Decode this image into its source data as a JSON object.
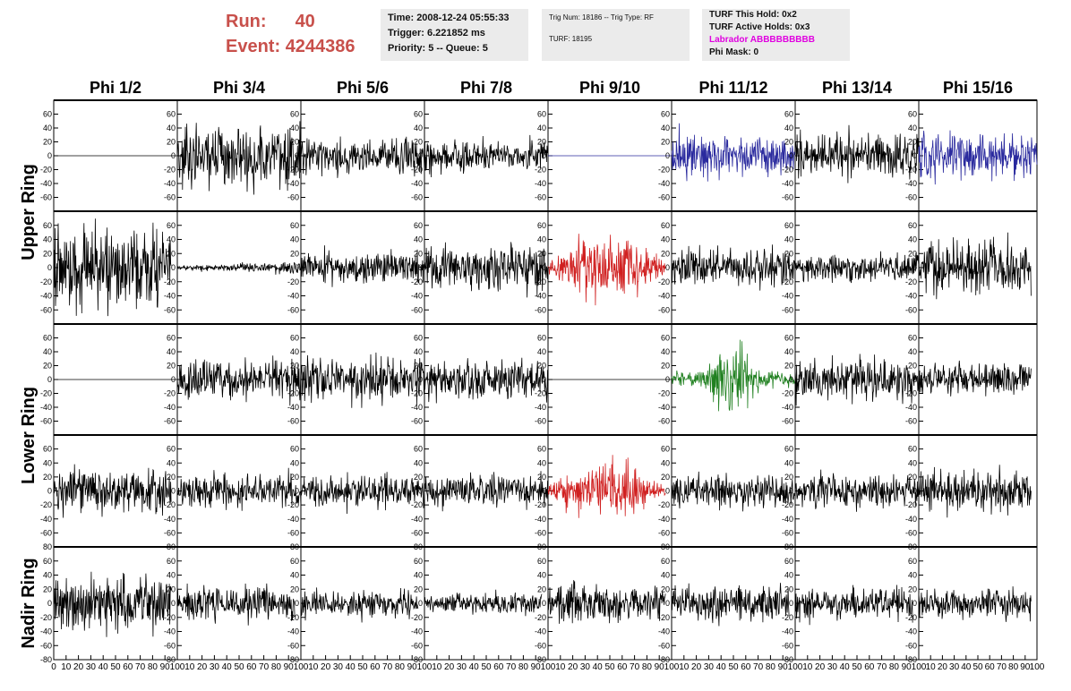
{
  "header": {
    "run_label": "Run:",
    "run_value": "40",
    "event_label": "Event:",
    "event_value": "4244386"
  },
  "info_box_1": {
    "time": "Time: 2008-12-24 05:55:33",
    "trigger": "Trigger: 6.221852 ms",
    "priority": "Priority: 5 -- Queue: 5"
  },
  "info_box_2": {
    "trig": "Trig Num: 18186 -- Trig Type: RF",
    "turf": "TURF: 18195"
  },
  "info_box_3": {
    "this_hold": "TURF This Hold: 0x2",
    "active_holds": "TURF Active Holds: 0x3",
    "labrador": "Labrador ABBBBBBBBB",
    "phi_mask": "Phi Mask: 0"
  },
  "colors": {
    "header_red": "#c8504b",
    "labrador_magenta": "#e000e0",
    "trace_black": "#000000",
    "trace_blue": "#2a2a9e",
    "trace_red": "#d02020",
    "trace_green": "#208020",
    "panel_background": "#ebebeb"
  },
  "chart_data": {
    "type": "line",
    "title": "",
    "column_labels": [
      "Phi 1/2",
      "Phi 3/4",
      "Phi 5/6",
      "Phi 7/8",
      "Phi 9/10",
      "Phi 11/12",
      "Phi 13/14",
      "Phi 15/16"
    ],
    "row_group_labels": [
      "Upper Ring",
      "Lower Ring",
      "Nadir Ring"
    ],
    "rows_per_group": [
      2,
      2,
      1
    ],
    "xlim": [
      0,
      100
    ],
    "ylim": [
      -80,
      80
    ],
    "x_tick_labels": [
      "0",
      "10",
      "20",
      "30",
      "40",
      "50",
      "60",
      "70",
      "80",
      "90",
      "100"
    ],
    "y_tick_labels": [
      "-80",
      "-60",
      "-40",
      "-20",
      "0",
      "20",
      "40",
      "60",
      "80"
    ],
    "trace_amplitude": [
      [
        0,
        22,
        12,
        11,
        0,
        15,
        16,
        16
      ],
      [
        28,
        3,
        11,
        16,
        18,
        13,
        9,
        18
      ],
      [
        0,
        14,
        15,
        14,
        0,
        16,
        15,
        11
      ],
      [
        15,
        12,
        11,
        11,
        14,
        11,
        11,
        14
      ],
      [
        20,
        12,
        9,
        7,
        13,
        12,
        12,
        10
      ]
    ],
    "trace_color": [
      [
        "black",
        "black",
        "black",
        "black",
        "blue",
        "blue",
        "black",
        "blue"
      ],
      [
        "black",
        "black",
        "black",
        "black",
        "red",
        "black",
        "black",
        "black"
      ],
      [
        "black",
        "black",
        "black",
        "black",
        "black",
        "green",
        "black",
        "black"
      ],
      [
        "black",
        "black",
        "black",
        "black",
        "red",
        "black",
        "black",
        "black"
      ],
      [
        "black",
        "black",
        "black",
        "black",
        "black",
        "black",
        "black",
        "black"
      ]
    ],
    "trace_envelope": [
      [
        "flat",
        "flat",
        "flat",
        "flat",
        "flat",
        "flat",
        "flat",
        "flat"
      ],
      [
        "flat",
        "rising",
        "flat",
        "flat",
        "bulge",
        "flat",
        "flat",
        "flat"
      ],
      [
        "flat",
        "flat",
        "flat",
        "flat",
        "flat",
        "burst",
        "flat",
        "flat"
      ],
      [
        "flat",
        "flat",
        "flat",
        "flat",
        "bulge",
        "flat",
        "flat",
        "flat"
      ],
      [
        "flat",
        "flat",
        "flat",
        "flat",
        "flat",
        "flat",
        "flat",
        "flat"
      ]
    ],
    "trace_length": [
      [
        100,
        100,
        100,
        100,
        100,
        100,
        100,
        100
      ],
      [
        95,
        100,
        100,
        100,
        95,
        100,
        100,
        95
      ],
      [
        100,
        100,
        100,
        100,
        100,
        100,
        100,
        95
      ],
      [
        95,
        100,
        100,
        100,
        95,
        100,
        100,
        95
      ],
      [
        95,
        95,
        95,
        95,
        95,
        95,
        95,
        95
      ]
    ]
  }
}
